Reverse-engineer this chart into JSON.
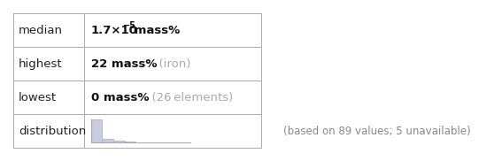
{
  "rows": [
    {
      "label": "median",
      "value": "1.7×10",
      "exp": "−5",
      "suffix": " mass%",
      "note": ""
    },
    {
      "label": "highest",
      "value": "22 mass%",
      "exp": "",
      "suffix": "",
      "note": "  (iron)"
    },
    {
      "label": "lowest",
      "value": "0 mass%",
      "exp": "",
      "suffix": "",
      "note": "  (26 elements)"
    },
    {
      "label": "distribution",
      "value": "",
      "exp": "",
      "suffix": "",
      "note": ""
    }
  ],
  "footer": "(based on 89 values; 5 unavailable)",
  "table_color": "#ffffff",
  "border_color": "#aaaaaa",
  "label_color": "#222222",
  "value_color": "#111111",
  "note_color": "#aaaaaa",
  "footer_color": "#888888",
  "hist_bar_color": "#c8cce0",
  "hist_bar_heights": [
    55,
    8,
    4,
    2,
    1,
    1,
    0,
    1
  ],
  "hist_edge_color": "#aaaaaa"
}
